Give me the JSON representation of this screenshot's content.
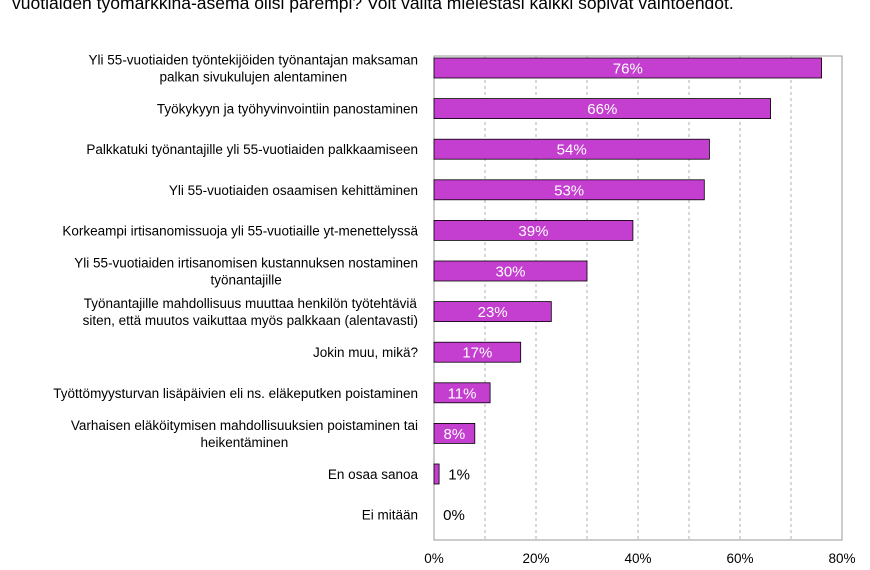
{
  "header": {
    "title": "vuotiaiden työmarkkina-asema olisi parempi? Voit valita mielestäsi kaikki sopivat vaihtoehdot."
  },
  "chart_data": {
    "type": "bar",
    "orientation": "horizontal",
    "categories": [
      "Yli 55-vuotiaiden työntekijöiden työnantajan maksaman palkan sivukulujen alentaminen",
      "Työkykyyn ja työhyvinvointiin panostaminen",
      "Palkkatuki työnantajille yli 55-vuotiaiden palkkaamiseen",
      "Yli 55-vuotiaiden osaamisen kehittäminen",
      "Korkeampi irtisanomissuoja yli 55-vuotiaille yt-menettelyssä",
      "Yli 55-vuotiaiden irtisanomisen kustannuksen nostaminen työnantajille",
      "Työnantajille mahdollisuus muuttaa henkilön työtehtäviä siten, että muutos vaikuttaa myös palkkaan (alentavasti)",
      "Jokin muu, mikä?",
      "Työttömyysturvan lisäpäivien eli ns. eläkeputken poistaminen",
      "Varhaisen eläköitymisen mahdollisuuksien poistaminen tai heikentäminen",
      "En osaa sanoa",
      "Ei mitään"
    ],
    "category_lines": [
      [
        "Yli 55-vuotiaiden työntekijöiden työnantajan maksaman",
        "palkan sivukulujen alentaminen"
      ],
      [
        "Työkykyyn ja työhyvinvointiin panostaminen"
      ],
      [
        "Palkkatuki työnantajille yli 55-vuotiaiden palkkaamiseen"
      ],
      [
        "Yli 55-vuotiaiden osaamisen kehittäminen"
      ],
      [
        "Korkeampi irtisanomissuoja yli 55-vuotiaille yt-menettelyssä"
      ],
      [
        "Yli 55-vuotiaiden irtisanomisen kustannuksen nostaminen",
        "työnantajille"
      ],
      [
        "Työnantajille mahdollisuus muuttaa henkilön työtehtäviä",
        "siten, että muutos vaikuttaa myös palkkaan (alentavasti)"
      ],
      [
        "Jokin muu, mikä?"
      ],
      [
        "Työttömyysturvan lisäpäivien eli ns. eläkeputken poistaminen"
      ],
      [
        "Varhaisen eläköitymisen mahdollisuuksien poistaminen tai",
        "heikentäminen"
      ],
      [
        "En osaa sanoa"
      ],
      [
        "Ei mitään"
      ]
    ],
    "values": [
      76,
      66,
      54,
      53,
      39,
      30,
      23,
      17,
      11,
      8,
      1,
      0
    ],
    "data_labels": [
      "76%",
      "66%",
      "54%",
      "53%",
      "39%",
      "30%",
      "23%",
      "17%",
      "11%",
      "8%",
      "1%",
      "0%"
    ],
    "x_ticks": [
      "0%",
      "20%",
      "40%",
      "60%",
      "80%"
    ],
    "xlim": [
      0,
      80
    ],
    "grid": true,
    "legend": "none",
    "colors": {
      "bar_fill": "#c43fd0",
      "bar_stroke": "#000000",
      "label_inside": "#ffffff",
      "label_outside": "#000000",
      "grid": "#b0b0b0",
      "frame": "#9a9a9a"
    }
  }
}
